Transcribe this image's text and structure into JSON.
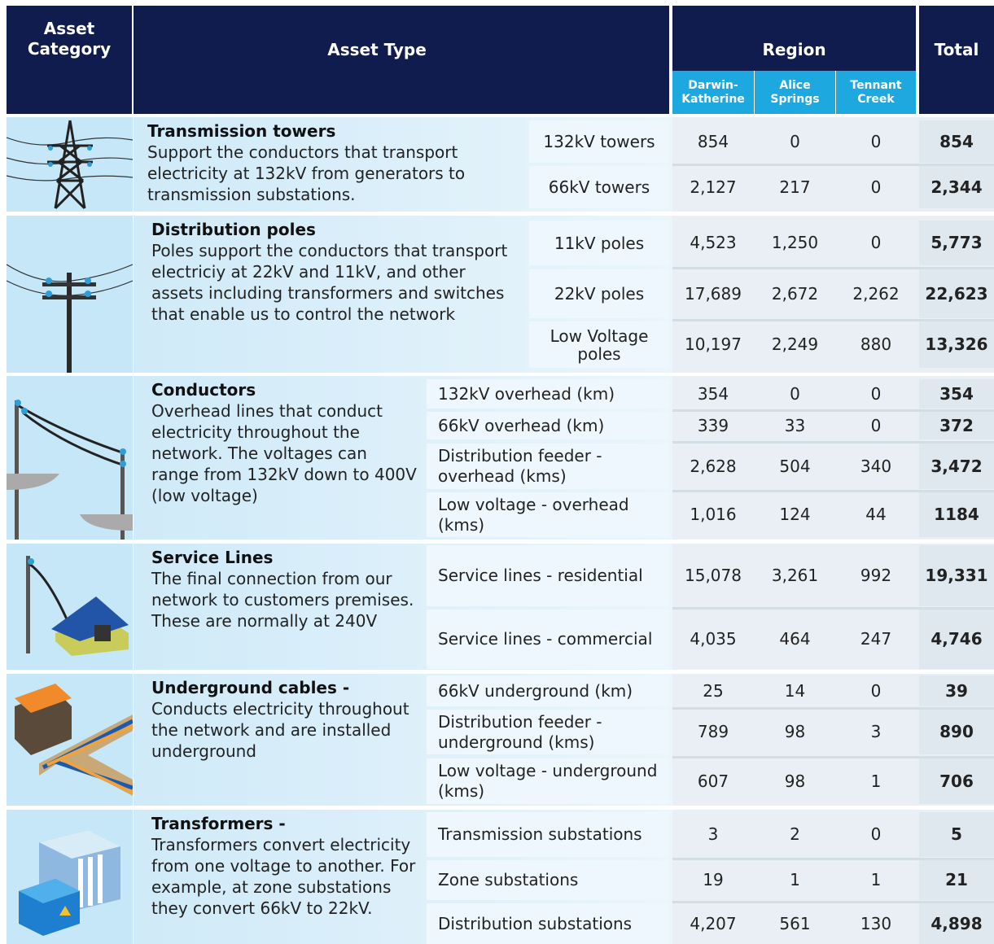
{
  "header": {
    "asset_category": "Asset Category",
    "asset_type": "Asset Type",
    "region": "Region",
    "regions": [
      "Darwin-Katherine",
      "Alice Springs",
      "Tennant Creek"
    ],
    "total": "Total"
  },
  "groups": [
    {
      "title": "Transmission towers",
      "description": "Support the conductors that transport electricity at 132kV from generators to transmission substations.",
      "rows": [
        {
          "type": "132kV towers",
          "values": [
            "854",
            "0",
            "0"
          ],
          "total": "854"
        },
        {
          "type": "66kV towers",
          "values": [
            "2,127",
            "217",
            "0"
          ],
          "total": "2,344"
        }
      ]
    },
    {
      "title": "Distribution poles",
      "description": "Poles support the conductors that transport electriciy at 22kV and 11kV, and other assets including transformers and switches that enable us to control the network",
      "rows": [
        {
          "type": "11kV poles",
          "values": [
            "4,523",
            "1,250",
            "0"
          ],
          "total": "5,773"
        },
        {
          "type": "22kV poles",
          "values": [
            "17,689",
            "2,672",
            "2,262"
          ],
          "total": "22,623"
        },
        {
          "type": "Low Voltage poles",
          "values": [
            "10,197",
            "2,249",
            "880"
          ],
          "total": "13,326"
        }
      ]
    },
    {
      "title": "Conductors",
      "description": "Overhead lines that conduct electricity throughout the network. The voltages can range from 132kV down to 400V (low voltage)",
      "rows": [
        {
          "type": "132kV overhead (km)",
          "values": [
            "354",
            "0",
            "0"
          ],
          "total": "354"
        },
        {
          "type": "66kV overhead (km)",
          "values": [
            "339",
            "33",
            "0"
          ],
          "total": "372"
        },
        {
          "type": "Distribution feeder - overhead (kms)",
          "values": [
            "2,628",
            "504",
            "340"
          ],
          "total": "3,472"
        },
        {
          "type": "Low voltage - overhead (kms)",
          "values": [
            "1,016",
            "124",
            "44"
          ],
          "total": "1184"
        }
      ]
    },
    {
      "title": "Service Lines",
      "description": "The final connection from our network to customers premises. These are normally at 240V",
      "rows": [
        {
          "type": "Service lines - residential",
          "values": [
            "15,078",
            "3,261",
            "992"
          ],
          "total": "19,331"
        },
        {
          "type": "Service lines - commercial",
          "values": [
            "4,035",
            "464",
            "247"
          ],
          "total": "4,746"
        }
      ]
    },
    {
      "title": "Underground cables -",
      "description": "Conducts electricity throughout the network and are installed underground",
      "rows": [
        {
          "type": "66kV underground (km)",
          "values": [
            "25",
            "14",
            "0"
          ],
          "total": "39"
        },
        {
          "type": "Distribution feeder - underground (kms)",
          "values": [
            "789",
            "98",
            "3"
          ],
          "total": "890"
        },
        {
          "type": "Low voltage - underground (kms)",
          "values": [
            "607",
            "98",
            "1"
          ],
          "total": "706"
        }
      ]
    },
    {
      "title": "Transformers -",
      "description": "Transformers convert electricity from one voltage to another.  For example, at zone substations they convert 66kV to 22kV.",
      "rows": [
        {
          "type": "Transmission substations",
          "values": [
            "3",
            "2",
            "0"
          ],
          "total": "5"
        },
        {
          "type": "Zone substations",
          "values": [
            "19",
            "1",
            "1"
          ],
          "total": "21"
        },
        {
          "type": "Distribution substations",
          "values": [
            "4,207",
            "561",
            "130"
          ],
          "total": "4,898"
        }
      ]
    }
  ]
}
